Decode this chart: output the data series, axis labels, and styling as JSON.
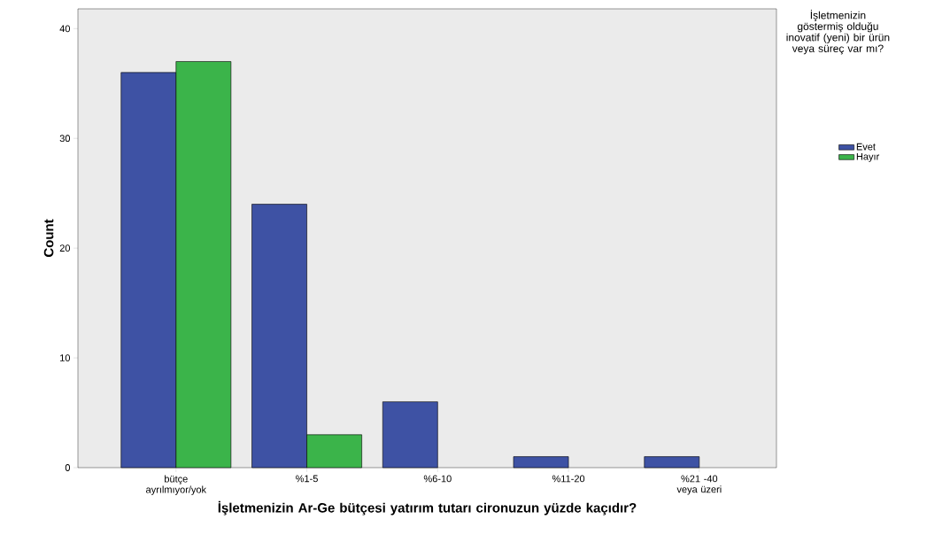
{
  "chart_data": {
    "type": "bar",
    "xlabel": "İşletmenizin Ar-Ge bütçesi yatırım tutarı cironuzun yüzde kaçıdır?",
    "ylabel": "Count",
    "legend_title": "İşletmenizin göstermiş olduğu inovatif (yeni) bir ürün veya süreç var mı?",
    "categories": [
      "bütçe ayrılmıyor/yok",
      "%1-5",
      "%6-10",
      "%11-20",
      "%21 -40 veya üzeri"
    ],
    "series": [
      {
        "name": "Evet",
        "color": "#3e52a4",
        "values": [
          36,
          24,
          6,
          1,
          1
        ]
      },
      {
        "name": "Hayır",
        "color": "#3bb44a",
        "values": [
          37,
          3,
          null,
          null,
          null
        ]
      }
    ],
    "ylim": [
      0,
      41.8
    ],
    "yticks": [
      0,
      10,
      20,
      30,
      40
    ],
    "grid": false,
    "legend": "right"
  }
}
